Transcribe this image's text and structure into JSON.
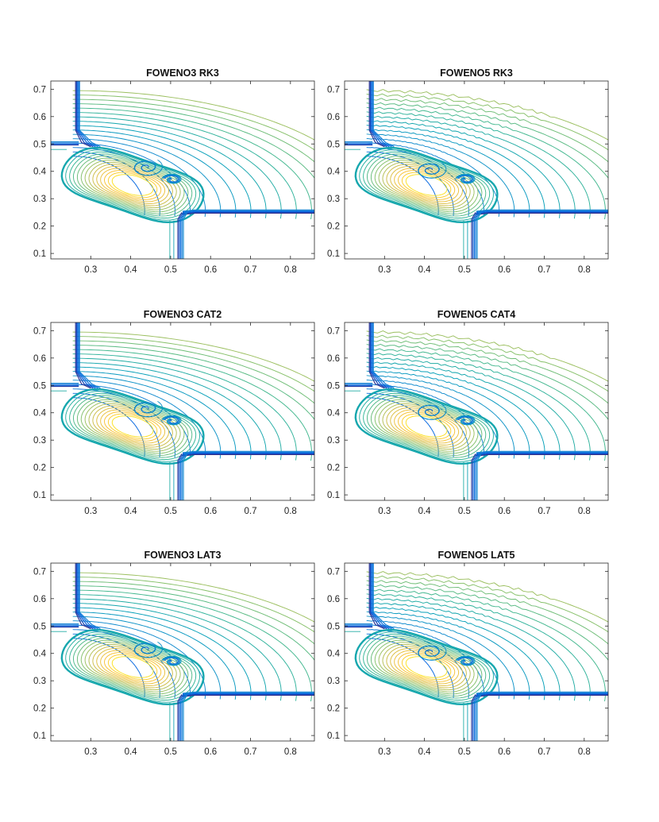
{
  "chart_data": [
    {
      "type": "contour",
      "title": "FOWENO3 RK3",
      "xlim": [
        0.2,
        0.86
      ],
      "ylim": [
        0.08,
        0.73
      ],
      "xticks": [
        "0.3",
        "0.4",
        "0.5",
        "0.6",
        "0.7",
        "0.8"
      ],
      "yticks": [
        "0.1",
        "0.2",
        "0.3",
        "0.4",
        "0.5",
        "0.6",
        "0.7"
      ],
      "grid": false,
      "colormap": "parula"
    },
    {
      "type": "contour",
      "title": "FOWENO5 RK3",
      "xlim": [
        0.2,
        0.86
      ],
      "ylim": [
        0.08,
        0.73
      ],
      "xticks": [
        "0.3",
        "0.4",
        "0.5",
        "0.6",
        "0.7",
        "0.8"
      ],
      "yticks": [
        "0.1",
        "0.2",
        "0.3",
        "0.4",
        "0.5",
        "0.6",
        "0.7"
      ],
      "grid": false,
      "colormap": "parula"
    },
    {
      "type": "contour",
      "title": "FOWENO3 CAT2",
      "xlim": [
        0.2,
        0.86
      ],
      "ylim": [
        0.08,
        0.73
      ],
      "xticks": [
        "0.3",
        "0.4",
        "0.5",
        "0.6",
        "0.7",
        "0.8"
      ],
      "yticks": [
        "0.1",
        "0.2",
        "0.3",
        "0.4",
        "0.5",
        "0.6",
        "0.7"
      ],
      "grid": false,
      "colormap": "parula"
    },
    {
      "type": "contour",
      "title": "FOWENO5 CAT4",
      "xlim": [
        0.2,
        0.86
      ],
      "ylim": [
        0.08,
        0.73
      ],
      "xticks": [
        "0.3",
        "0.4",
        "0.5",
        "0.6",
        "0.7",
        "0.8"
      ],
      "yticks": [
        "0.1",
        "0.2",
        "0.3",
        "0.4",
        "0.5",
        "0.6",
        "0.7"
      ],
      "grid": false,
      "colormap": "parula"
    },
    {
      "type": "contour",
      "title": "FOWENO3 LAT3",
      "xlim": [
        0.2,
        0.86
      ],
      "ylim": [
        0.08,
        0.73
      ],
      "xticks": [
        "0.3",
        "0.4",
        "0.5",
        "0.6",
        "0.7",
        "0.8"
      ],
      "yticks": [
        "0.1",
        "0.2",
        "0.3",
        "0.4",
        "0.5",
        "0.6",
        "0.7"
      ],
      "grid": false,
      "colormap": "parula"
    },
    {
      "type": "contour",
      "title": "FOWENO5 LAT5",
      "xlim": [
        0.2,
        0.86
      ],
      "ylim": [
        0.08,
        0.73
      ],
      "xticks": [
        "0.3",
        "0.4",
        "0.5",
        "0.6",
        "0.7",
        "0.8"
      ],
      "yticks": [
        "0.1",
        "0.2",
        "0.3",
        "0.4",
        "0.5",
        "0.6",
        "0.7"
      ],
      "grid": false,
      "colormap": "parula"
    }
  ]
}
